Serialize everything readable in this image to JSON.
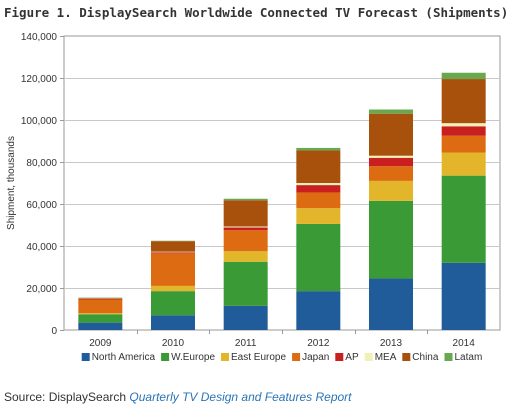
{
  "header": {
    "title": "Figure 1. DisplaySearch Worldwide Connected TV Forecast (Shipments)"
  },
  "footer": {
    "source_prefix": "Source: DisplaySearch ",
    "report_name": "Quarterly TV Design and Features Report"
  },
  "chart_data": {
    "type": "bar",
    "stacked": true,
    "title": "Figure 1. DisplaySearch Worldwide Connected TV Forecast (Shipments)",
    "xlabel": "",
    "ylabel": "Shipment, thousands",
    "ylim": [
      0,
      140000
    ],
    "yticks": [
      0,
      20000,
      40000,
      60000,
      80000,
      100000,
      120000,
      140000
    ],
    "ytick_labels": [
      "0",
      "20,000",
      "40,000",
      "60,000",
      "80,000",
      "100,000",
      "120,000",
      "140,000"
    ],
    "grid": true,
    "legend_position": "bottom",
    "categories": [
      "2009",
      "2010",
      "2011",
      "2012",
      "2013",
      "2014"
    ],
    "series": [
      {
        "name": "North America",
        "color": "#1f5c99",
        "values": [
          3500,
          7000,
          11500,
          18500,
          24500,
          32000
        ]
      },
      {
        "name": "W.Europe",
        "color": "#3a9a36",
        "values": [
          4000,
          11500,
          21000,
          32000,
          37000,
          41500
        ]
      },
      {
        "name": "East Europe",
        "color": "#e2b52b",
        "values": [
          500,
          2500,
          5000,
          7500,
          9500,
          11000
        ]
      },
      {
        "name": "Japan",
        "color": "#dd6b11",
        "values": [
          6500,
          15500,
          10000,
          7500,
          7000,
          8000
        ]
      },
      {
        "name": "AP",
        "color": "#c9201f",
        "values": [
          300,
          500,
          1300,
          3500,
          4000,
          4500
        ]
      },
      {
        "name": "MEA",
        "color": "#f0f0b8",
        "values": [
          100,
          300,
          500,
          1000,
          1000,
          1500
        ]
      },
      {
        "name": "China",
        "color": "#a8510d",
        "values": [
          300,
          5000,
          12500,
          15500,
          20000,
          21000
        ]
      },
      {
        "name": "Latam",
        "color": "#6aa84f",
        "values": [
          200,
          200,
          700,
          1200,
          2000,
          3000
        ]
      }
    ]
  }
}
